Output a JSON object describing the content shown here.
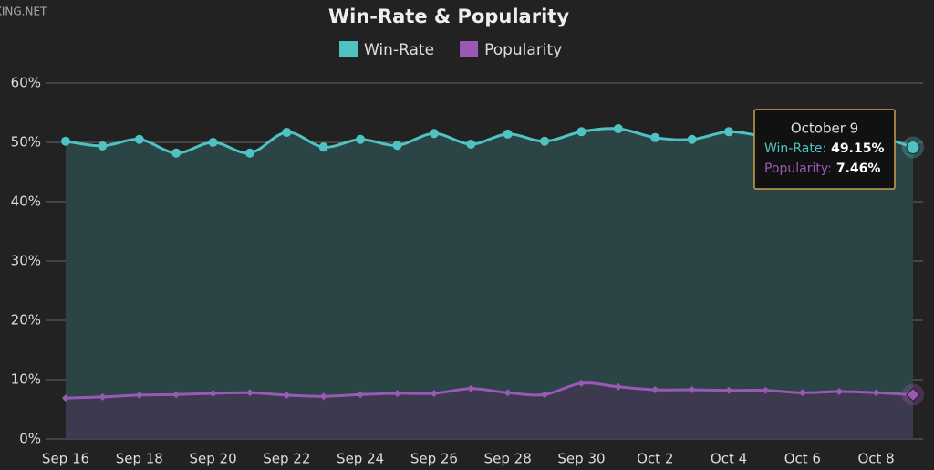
{
  "watermark": "KING.NET",
  "chart_data": {
    "type": "area",
    "title": "Win-Rate & Popularity",
    "categories": [
      "Sep 16",
      null,
      "Sep 18",
      null,
      "Sep 20",
      null,
      "Sep 22",
      null,
      "Sep 24",
      null,
      "Sep 26",
      null,
      "Sep 28",
      null,
      "Sep 30",
      null,
      "Oct 2",
      null,
      "Oct 4",
      null,
      "Oct 6",
      null,
      "Oct 8",
      null
    ],
    "series": [
      {
        "name": "Win-Rate",
        "color": "#4fc3c3",
        "fill": "#2b4445",
        "marker": "circle",
        "values": [
          50.2,
          49.4,
          50.5,
          48.2,
          50.0,
          48.2,
          51.7,
          49.2,
          50.5,
          49.5,
          51.5,
          49.7,
          51.4,
          50.2,
          51.8,
          52.3,
          50.8,
          50.5,
          51.8,
          51.1,
          51.7,
          52.0,
          51.1,
          49.15
        ]
      },
      {
        "name": "Popularity",
        "color": "#9b59b6",
        "fill": "#3d3a50",
        "marker": "diamond",
        "values": [
          6.9,
          7.1,
          7.4,
          7.5,
          7.7,
          7.8,
          7.4,
          7.2,
          7.5,
          7.7,
          7.7,
          8.5,
          7.8,
          7.5,
          9.4,
          8.8,
          8.3,
          8.3,
          8.2,
          8.2,
          7.8,
          8.0,
          7.8,
          7.46
        ]
      }
    ],
    "ylim": [
      0,
      60
    ],
    "yticks": [
      {
        "value": 0,
        "label": "0%"
      },
      {
        "value": 10,
        "label": "10%"
      },
      {
        "value": 20,
        "label": "20%"
      },
      {
        "value": 30,
        "label": "30%"
      },
      {
        "value": 40,
        "label": "40%"
      },
      {
        "value": 50,
        "label": "50%"
      },
      {
        "value": 60,
        "label": "60%"
      }
    ],
    "grid": true,
    "legend": "top",
    "tooltip": {
      "title": "October 9",
      "rows": [
        {
          "label": "Win-Rate:",
          "value": "49.15%"
        },
        {
          "label": "Popularity:",
          "value": "7.46%"
        }
      ]
    }
  }
}
